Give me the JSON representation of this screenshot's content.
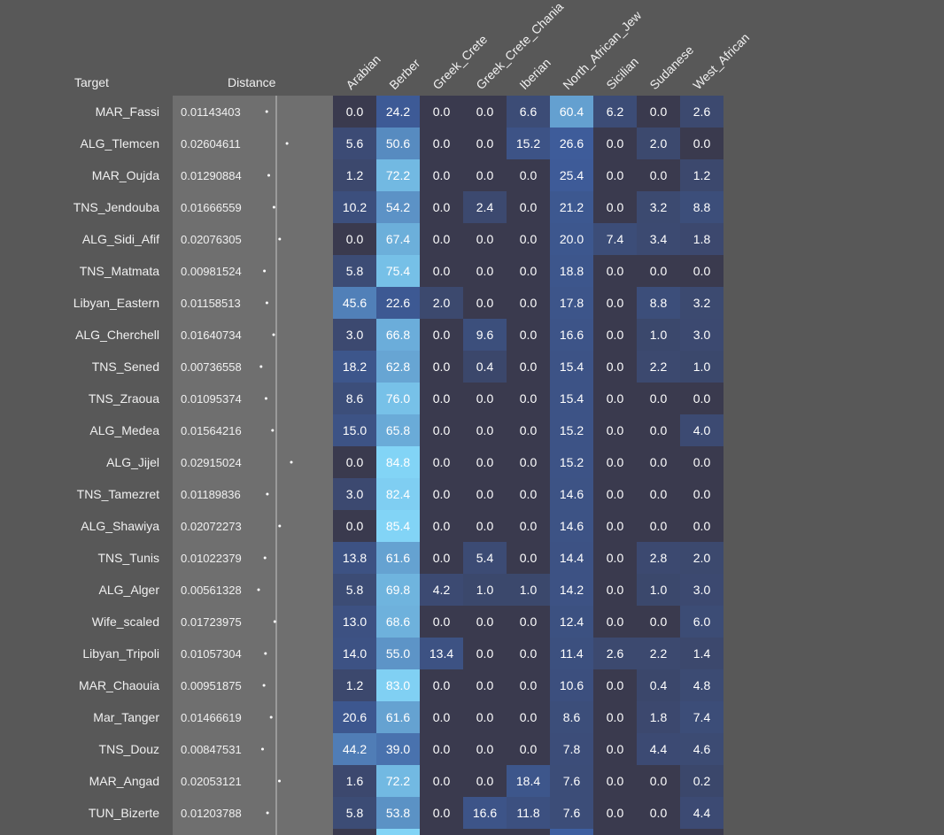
{
  "headers": {
    "target": "Target",
    "distance": "Distance"
  },
  "chart_data": {
    "type": "heatmap",
    "columns": [
      "Arabian",
      "Berber",
      "Greek_Crete",
      "Greek_Crete_Chania",
      "Iberian",
      "North_African_Jew",
      "Sicilian",
      "Sudanese",
      "West_African"
    ],
    "rows": [
      {
        "target": "MAR_Fassi",
        "distance": "0.01143403",
        "values": [
          0.0,
          24.2,
          0.0,
          0.0,
          6.6,
          60.4,
          6.2,
          0.0,
          2.6
        ]
      },
      {
        "target": "ALG_Tlemcen",
        "distance": "0.02604611",
        "values": [
          5.6,
          50.6,
          0.0,
          0.0,
          15.2,
          26.6,
          0.0,
          2.0,
          0.0
        ]
      },
      {
        "target": "MAR_Oujda",
        "distance": "0.01290884",
        "values": [
          1.2,
          72.2,
          0.0,
          0.0,
          0.0,
          25.4,
          0.0,
          0.0,
          1.2
        ]
      },
      {
        "target": "TNS_Jendouba",
        "distance": "0.01666559",
        "values": [
          10.2,
          54.2,
          0.0,
          2.4,
          0.0,
          21.2,
          0.0,
          3.2,
          8.8
        ]
      },
      {
        "target": "ALG_Sidi_Afif",
        "distance": "0.02076305",
        "values": [
          0.0,
          67.4,
          0.0,
          0.0,
          0.0,
          20.0,
          7.4,
          3.4,
          1.8
        ]
      },
      {
        "target": "TNS_Matmata",
        "distance": "0.00981524",
        "values": [
          5.8,
          75.4,
          0.0,
          0.0,
          0.0,
          18.8,
          0.0,
          0.0,
          0.0
        ]
      },
      {
        "target": "Libyan_Eastern",
        "distance": "0.01158513",
        "values": [
          45.6,
          22.6,
          2.0,
          0.0,
          0.0,
          17.8,
          0.0,
          8.8,
          3.2
        ]
      },
      {
        "target": "ALG_Cherchell",
        "distance": "0.01640734",
        "values": [
          3.0,
          66.8,
          0.0,
          9.6,
          0.0,
          16.6,
          0.0,
          1.0,
          3.0
        ]
      },
      {
        "target": "TNS_Sened",
        "distance": "0.00736558",
        "values": [
          18.2,
          62.8,
          0.0,
          0.4,
          0.0,
          15.4,
          0.0,
          2.2,
          1.0
        ]
      },
      {
        "target": "TNS_Zraoua",
        "distance": "0.01095374",
        "values": [
          8.6,
          76.0,
          0.0,
          0.0,
          0.0,
          15.4,
          0.0,
          0.0,
          0.0
        ]
      },
      {
        "target": "ALG_Medea",
        "distance": "0.01564216",
        "values": [
          15.0,
          65.8,
          0.0,
          0.0,
          0.0,
          15.2,
          0.0,
          0.0,
          4.0
        ]
      },
      {
        "target": "ALG_Jijel",
        "distance": "0.02915024",
        "values": [
          0.0,
          84.8,
          0.0,
          0.0,
          0.0,
          15.2,
          0.0,
          0.0,
          0.0
        ]
      },
      {
        "target": "TNS_Tamezret",
        "distance": "0.01189836",
        "values": [
          3.0,
          82.4,
          0.0,
          0.0,
          0.0,
          14.6,
          0.0,
          0.0,
          0.0
        ]
      },
      {
        "target": "ALG_Shawiya",
        "distance": "0.02072273",
        "values": [
          0.0,
          85.4,
          0.0,
          0.0,
          0.0,
          14.6,
          0.0,
          0.0,
          0.0
        ]
      },
      {
        "target": "TNS_Tunis",
        "distance": "0.01022379",
        "values": [
          13.8,
          61.6,
          0.0,
          5.4,
          0.0,
          14.4,
          0.0,
          2.8,
          2.0
        ]
      },
      {
        "target": "ALG_Alger",
        "distance": "0.00561328",
        "values": [
          5.8,
          69.8,
          4.2,
          1.0,
          1.0,
          14.2,
          0.0,
          1.0,
          3.0
        ]
      },
      {
        "target": "Wife_scaled",
        "distance": "0.01723975",
        "values": [
          13.0,
          68.6,
          0.0,
          0.0,
          0.0,
          12.4,
          0.0,
          0.0,
          6.0
        ]
      },
      {
        "target": "Libyan_Tripoli",
        "distance": "0.01057304",
        "values": [
          14.0,
          55.0,
          13.4,
          0.0,
          0.0,
          11.4,
          2.6,
          2.2,
          1.4
        ]
      },
      {
        "target": "MAR_Chaouia",
        "distance": "0.00951875",
        "values": [
          1.2,
          83.0,
          0.0,
          0.0,
          0.0,
          10.6,
          0.0,
          0.4,
          4.8
        ]
      },
      {
        "target": "Mar_Tanger",
        "distance": "0.01466619",
        "values": [
          20.6,
          61.6,
          0.0,
          0.0,
          0.0,
          8.6,
          0.0,
          1.8,
          7.4
        ]
      },
      {
        "target": "TNS_Douz",
        "distance": "0.00847531",
        "values": [
          44.2,
          39.0,
          0.0,
          0.0,
          0.0,
          7.8,
          0.0,
          4.4,
          4.6
        ]
      },
      {
        "target": "MAR_Angad",
        "distance": "0.02053121",
        "values": [
          1.6,
          72.2,
          0.0,
          0.0,
          18.4,
          7.6,
          0.0,
          0.0,
          0.2
        ]
      },
      {
        "target": "TUN_Bizerte",
        "distance": "0.01203788",
        "values": [
          5.8,
          53.8,
          0.0,
          16.6,
          11.8,
          7.6,
          0.0,
          0.0,
          4.4
        ]
      }
    ],
    "value_range": [
      0,
      100
    ],
    "colors": {
      "low": "#3a3a4e",
      "mid": "#3e5fa0",
      "high": "#82d4f6",
      "distance_panel": "#6f6f6f",
      "distance_dot": "#ffffff",
      "background": "#585858"
    }
  }
}
